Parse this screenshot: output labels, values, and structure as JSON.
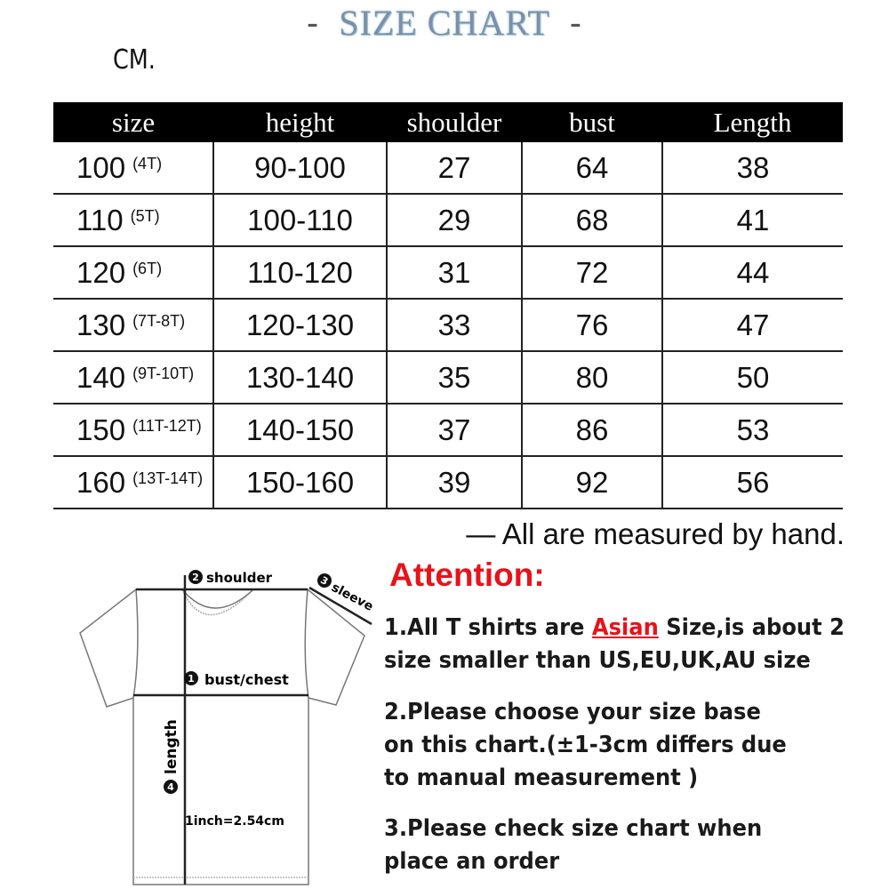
{
  "title": "SIZE CHART",
  "title_dash": "-",
  "unit": "CM.",
  "table": {
    "headers": [
      "size",
      "height",
      "shoulder",
      "bust",
      "Length"
    ],
    "rows": [
      {
        "size": "100",
        "age": "(4T)",
        "height": "90-100",
        "shoulder": "27",
        "bust": "64",
        "length": "38"
      },
      {
        "size": "110",
        "age": "(5T)",
        "height": "100-110",
        "shoulder": "29",
        "bust": "68",
        "length": "41"
      },
      {
        "size": "120",
        "age": "(6T)",
        "height": "110-120",
        "shoulder": "31",
        "bust": "72",
        "length": "44"
      },
      {
        "size": "130",
        "age": "(7T-8T)",
        "height": "120-130",
        "shoulder": "33",
        "bust": "76",
        "length": "47"
      },
      {
        "size": "140",
        "age": "(9T-10T)",
        "height": "130-140",
        "shoulder": "35",
        "bust": "80",
        "length": "50"
      },
      {
        "size": "150",
        "age": "(11T-12T)",
        "height": "140-150",
        "shoulder": "37",
        "bust": "86",
        "length": "53"
      },
      {
        "size": "160",
        "age": "(13T-14T)",
        "height": "150-160",
        "shoulder": "39",
        "bust": "92",
        "length": "56"
      }
    ]
  },
  "note": "— All are measured by hand.",
  "diagram": {
    "shoulder": "shoulder",
    "shoulder_num": "2",
    "sleeve": "sleeve",
    "sleeve_num": "3",
    "bust": "bust/chest",
    "bust_num": "1",
    "length": "length",
    "length_num": "4",
    "conversion": "1inch=2.54cm"
  },
  "attention": {
    "heading": "Attention:",
    "p1_before": "1.All T shirts are ",
    "p1_highlight": "Asian",
    "p1_after": " Size,is about 2 size smaller than US,EU,UK,AU size",
    "p2": "2.Please choose your size base on this chart.(±1-3cm differs due to manual measurement )",
    "p3": "3.Please check size chart when place an order"
  },
  "colors": {
    "accent": "#e8121b",
    "header_bg": "#000000",
    "title": "#7a90a8"
  }
}
